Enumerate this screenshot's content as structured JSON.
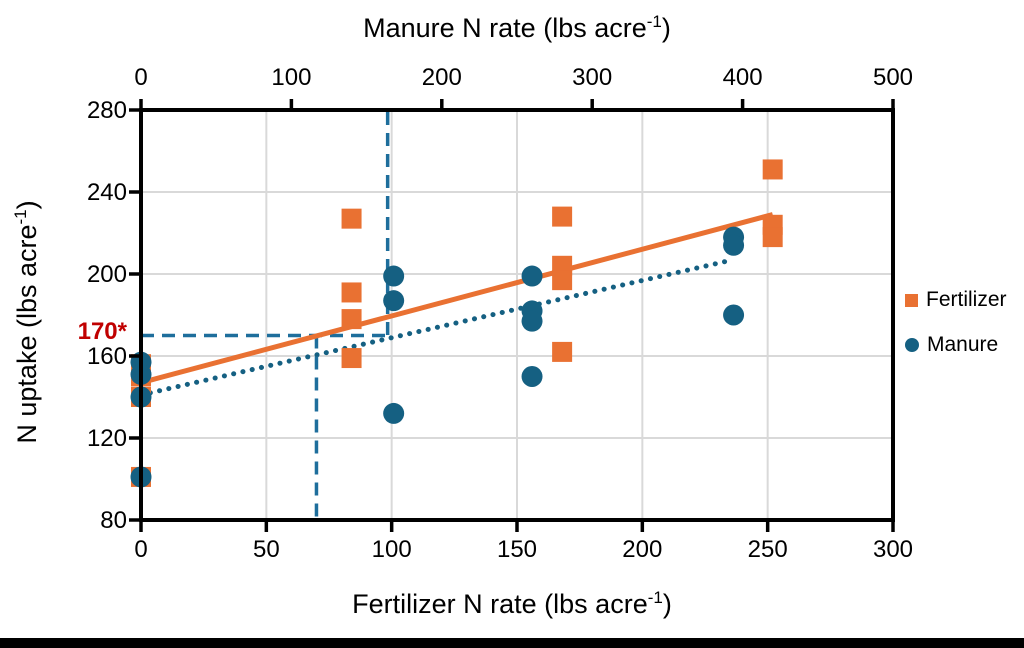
{
  "figure": {
    "background": "#ffffff",
    "bottom_bar_color": "#000000",
    "axis_color": "#000000",
    "grid_color": "#D9D9D9"
  },
  "chart_data": {
    "type": "scatter",
    "axes": {
      "top_x": {
        "label_pre": "Manure N rate (lbs acre",
        "label_sup": "-1",
        "label_post": ")",
        "ticks": [
          0,
          100,
          200,
          300,
          400,
          500
        ],
        "range": [
          0,
          500
        ]
      },
      "bottom_x": {
        "label_pre": "Fertilizer N rate (lbs acre",
        "label_sup": "-1",
        "label_post": ")",
        "ticks": [
          0,
          50,
          100,
          150,
          200,
          250,
          300
        ],
        "range": [
          0,
          300
        ]
      },
      "y": {
        "label_pre": "N uptake (lbs acre",
        "label_sup": "-1",
        "label_post": ")",
        "ticks": [
          80,
          120,
          160,
          200,
          240,
          280
        ],
        "range": [
          80,
          280
        ]
      }
    },
    "series": [
      {
        "name": "Fertilizer",
        "marker": "square",
        "color": "#E97132",
        "axis": "bottom_x",
        "points": [
          [
            0,
            156
          ],
          [
            0,
            150
          ],
          [
            0,
            140
          ],
          [
            0,
            101
          ],
          [
            84,
            227
          ],
          [
            84,
            191
          ],
          [
            84,
            178
          ],
          [
            84,
            159
          ],
          [
            168,
            228
          ],
          [
            168,
            204
          ],
          [
            168,
            197
          ],
          [
            168,
            162
          ],
          [
            252,
            251
          ],
          [
            252,
            224
          ],
          [
            252,
            218
          ]
        ]
      },
      {
        "name": "Manure",
        "marker": "circle",
        "color": "#156082",
        "axis": "top_x",
        "points": [
          [
            0,
            157
          ],
          [
            0,
            151
          ],
          [
            0,
            140
          ],
          [
            0,
            101
          ],
          [
            168,
            199
          ],
          [
            168,
            187
          ],
          [
            168,
            132
          ],
          [
            260,
            199
          ],
          [
            260,
            182
          ],
          [
            260,
            177
          ],
          [
            260,
            150
          ],
          [
            394,
            218
          ],
          [
            394,
            214
          ],
          [
            394,
            180
          ]
        ]
      }
    ],
    "trendlines": [
      {
        "series": "Manure",
        "axis": "top_x",
        "style": "dotted",
        "color": "#156082",
        "from": [
          0,
          141
        ],
        "to": [
          394,
          207
        ]
      },
      {
        "series": "Fertilizer",
        "axis": "bottom_x",
        "style": "solid",
        "color": "#E97132",
        "from": [
          0,
          147
        ],
        "to": [
          252,
          229
        ]
      }
    ],
    "reference_lines": {
      "style": "dashed",
      "color": "#1E6E9C",
      "target_uptake": 170,
      "fertilizer_rate_at_target": 70,
      "manure_rate_at_target": 164
    },
    "annotation": {
      "text": "170*",
      "color": "#C00000"
    }
  },
  "legend": {
    "items": [
      {
        "label": "Fertilizer",
        "marker": "square",
        "color": "#E97132"
      },
      {
        "label": "Manure",
        "marker": "circle",
        "color": "#156082"
      }
    ]
  }
}
